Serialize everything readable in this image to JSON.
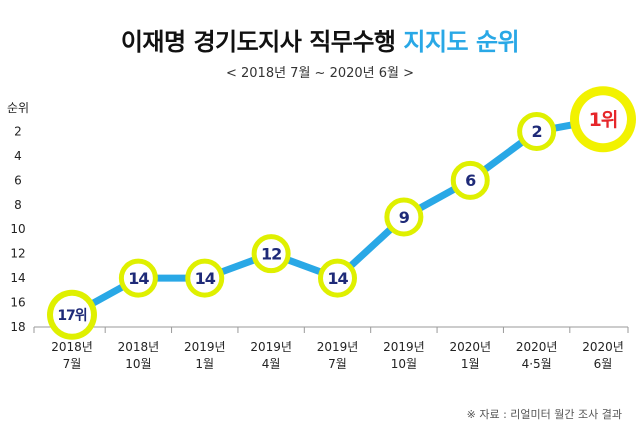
{
  "title_main": "이재명 경기도지사 직무수행",
  "title_accent": "지지도 순위",
  "subtitle": "< 2018년 7월  ~  2020년 6월 >",
  "source": "※ 자료 : 리얼미터 월간 조사 결과",
  "colors": {
    "line": "#29a8e6",
    "marker_ring": "#dff000",
    "marker_fill": "#ffffff",
    "label": "#1e2a78",
    "top_label": "#e6262a",
    "highlight_ring": "#f2f200",
    "accent": "#29a8e6"
  },
  "chart_data": {
    "type": "line",
    "title": "이재명 경기도지사 직무수행 지지도 순위",
    "ylabel": "순위",
    "y_inverted": true,
    "ylim": [
      0,
      18
    ],
    "yticks": [
      2,
      4,
      6,
      8,
      10,
      12,
      14,
      16,
      18
    ],
    "categories": [
      [
        "2018년",
        "7월"
      ],
      [
        "2018년",
        "10월"
      ],
      [
        "2019년",
        "1월"
      ],
      [
        "2019년",
        "4월"
      ],
      [
        "2019년",
        "7월"
      ],
      [
        "2019년",
        "10월"
      ],
      [
        "2020년",
        "1월"
      ],
      [
        "2020년",
        "4·5월"
      ],
      [
        "2020년",
        "6월"
      ]
    ],
    "values": [
      17,
      14,
      14,
      12,
      14,
      9,
      6,
      2,
      1
    ],
    "point_labels": [
      "17위",
      "14",
      "14",
      "12",
      "14",
      "9",
      "6",
      "2",
      "1위"
    ],
    "grid": false
  }
}
